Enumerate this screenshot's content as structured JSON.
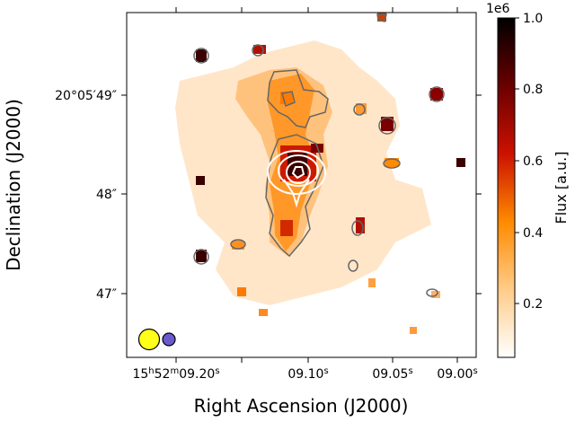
{
  "chart_data": {
    "type": "heatmap",
    "title": "",
    "xlabel": "Right Ascension (J2000)",
    "ylabel": "Declination (J2000)",
    "x_ticks": [
      {
        "hms": "15h52m09.20s",
        "label_main": "15",
        "label_h": "h",
        "label_mid": "52",
        "label_m": "m",
        "label_val": "09.20",
        "label_s": "s"
      },
      {
        "hms": "09.10s",
        "label_main": "",
        "label_h": "",
        "label_mid": "",
        "label_m": "",
        "label_val": "09.10",
        "label_s": "s"
      },
      {
        "hms": "09.05s",
        "label_main": "",
        "label_h": "",
        "label_mid": "",
        "label_m": "",
        "label_val": "09.05",
        "label_s": "s"
      },
      {
        "hms": "09.00s",
        "label_main": "",
        "label_h": "",
        "label_mid": "",
        "label_m": "",
        "label_val": "09.00",
        "label_s": "s"
      }
    ],
    "y_ticks": [
      {
        "value_arcsec": 49,
        "label": "20°05′49″"
      },
      {
        "value_arcsec": 48,
        "label": "48″"
      },
      {
        "value_arcsec": 47,
        "label": "47″"
      }
    ],
    "colorbar": {
      "label": "Flux [a.u.]",
      "offset_text": "1e6",
      "ticks": [
        "0.2",
        "0.4",
        "0.6",
        "0.8",
        "1.0"
      ],
      "tick_values": [
        0.2,
        0.4,
        0.6,
        0.8,
        1.0
      ],
      "range": [
        0.05,
        1.0
      ],
      "colormap": "gist_heat_r"
    },
    "emission_blobs": [
      {
        "name": "central-core",
        "ra_s": 9.118,
        "dec_off": 48.2,
        "peak": 1.0
      },
      {
        "name": "north-arm",
        "ra_s": 9.13,
        "dec_off": 49.0,
        "peak": 0.45
      },
      {
        "name": "south-tail",
        "ra_s": 9.12,
        "dec_off": 47.5,
        "peak": 0.55
      },
      {
        "name": "east-knot",
        "ra_s": 9.205,
        "dec_off": 49.4,
        "peak": 0.7
      },
      {
        "name": "west-knot",
        "ra_s": 9.05,
        "dec_off": 48.7,
        "peak": 0.65
      },
      {
        "name": "far-west",
        "ra_s": 9.02,
        "dec_off": 49.0,
        "peak": 0.6
      }
    ],
    "contours": {
      "white_levels": 4,
      "gray_levels": 1
    },
    "beams": [
      {
        "name": "beam-large",
        "color": "#ffff1a"
      },
      {
        "name": "beam-small",
        "color": "#6a5acd"
      }
    ]
  }
}
